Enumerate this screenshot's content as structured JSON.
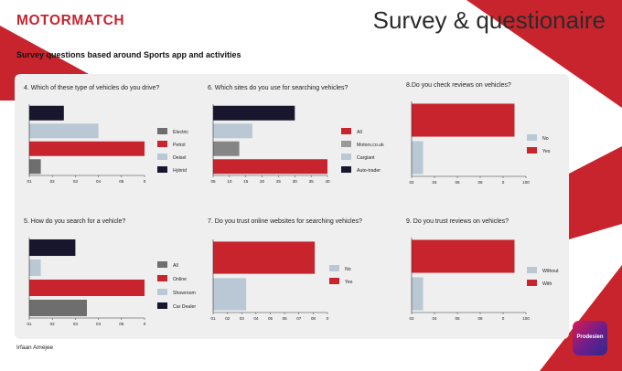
{
  "brand": {
    "name": "MOTORMATCH"
  },
  "header": {
    "title": "Survey & questionaire",
    "subtitle": "Survey questions based around Sports app and activities"
  },
  "footer": {
    "author": "Irfaan Amejee",
    "logo_text": "Prodesien"
  },
  "colors": {
    "red": "#c8242e",
    "light_blue": "#b9c8d4",
    "navy": "#17162c",
    "gray": "#6e6e6e",
    "accent_panel": "#efefef"
  },
  "chart_data": [
    {
      "type": "bar",
      "orientation": "horizontal",
      "title": "4. Which of these type of vehicles do you drive?",
      "categories": [
        "Hybrid",
        "Diesel",
        "Petrol",
        "Electric"
      ],
      "values": [
        1.5,
        3,
        5,
        0.5
      ],
      "colors": [
        "#17162c",
        "#b9c8d4",
        "#c8242e",
        "#6e6e6e"
      ],
      "legend": [
        "Electric",
        "Petrol",
        "Deisel",
        "Hybrid"
      ],
      "legend_colors": [
        "#6e6e6e",
        "#c8242e",
        "#b9c8d4",
        "#17162c"
      ],
      "xticks": [
        "01",
        "02",
        "03",
        "04",
        "05",
        "0"
      ],
      "xlim": [
        0,
        5
      ]
    },
    {
      "type": "bar",
      "orientation": "horizontal",
      "title": "6. Which sites do you use for searching vehicles?",
      "categories": [
        "Auto-trader",
        "Cargiant",
        "Motors.co.uk",
        "All"
      ],
      "values": [
        30,
        17,
        13,
        40
      ],
      "colors": [
        "#17162c",
        "#b9c8d4",
        "#858585",
        "#c8242e"
      ],
      "legend": [
        "All",
        "Motors.co.uk",
        "Cargiant",
        "Auto-trader"
      ],
      "legend_colors": [
        "#c8242e",
        "#999999",
        "#b9c8d4",
        "#17162c"
      ],
      "xticks": [
        "05",
        "10",
        "15",
        "20",
        "25",
        "30",
        "35",
        "40"
      ],
      "xlim": [
        5,
        40
      ]
    },
    {
      "type": "bar",
      "orientation": "horizontal",
      "title": "8.Do you check reviews on vehicles?",
      "categories": [
        "Yes",
        "No"
      ],
      "values": [
        90,
        10
      ],
      "colors": [
        "#c8242e",
        "#b9c8d4"
      ],
      "legend": [
        "No",
        "Yes"
      ],
      "legend_colors": [
        "#b9c8d4",
        "#c8242e"
      ],
      "xticks": [
        "02",
        "04",
        "06",
        "08",
        "0",
        "100"
      ],
      "xlim": [
        0,
        100
      ]
    },
    {
      "type": "bar",
      "orientation": "horizontal",
      "title": "5. How do you search for a vehicle?",
      "categories": [
        "Car Dealer",
        "Showroom",
        "Online",
        "All"
      ],
      "values": [
        2,
        0.5,
        5,
        2.5
      ],
      "colors": [
        "#17162c",
        "#b9c8d4",
        "#c8242e",
        "#6e6e6e"
      ],
      "legend": [
        "All",
        "Online",
        "Showroom",
        "Car Dealer"
      ],
      "legend_colors": [
        "#6e6e6e",
        "#c8242e",
        "#b9c8d4",
        "#17162c"
      ],
      "xticks": [
        "01",
        "02",
        "03",
        "04",
        "05",
        "0"
      ],
      "xlim": [
        0,
        5
      ]
    },
    {
      "type": "bar",
      "orientation": "horizontal",
      "title": "7. Do you trust online websites for searching vehicles?",
      "categories": [
        "Yes",
        "No"
      ],
      "values": [
        0.8,
        0.26
      ],
      "colors": [
        "#c8242e",
        "#b9c8d4"
      ],
      "legend": [
        "No",
        "Yes"
      ],
      "legend_colors": [
        "#b9c8d4",
        "#c8242e"
      ],
      "xticks": [
        "01",
        "02",
        "03",
        "04",
        "05",
        "06",
        "07",
        "08",
        "0"
      ],
      "xlim": [
        0,
        0.9
      ]
    },
    {
      "type": "bar",
      "orientation": "horizontal",
      "title": "9. Do you trust reviews on vehicles?",
      "categories": [
        "With",
        "Without"
      ],
      "values": [
        90,
        10
      ],
      "colors": [
        "#c8242e",
        "#b9c8d4"
      ],
      "legend": [
        "Without",
        "With"
      ],
      "legend_colors": [
        "#b9c8d4",
        "#c8242e"
      ],
      "xticks": [
        "02",
        "04",
        "06",
        "08",
        "0",
        "100"
      ],
      "xlim": [
        0,
        100
      ]
    }
  ]
}
